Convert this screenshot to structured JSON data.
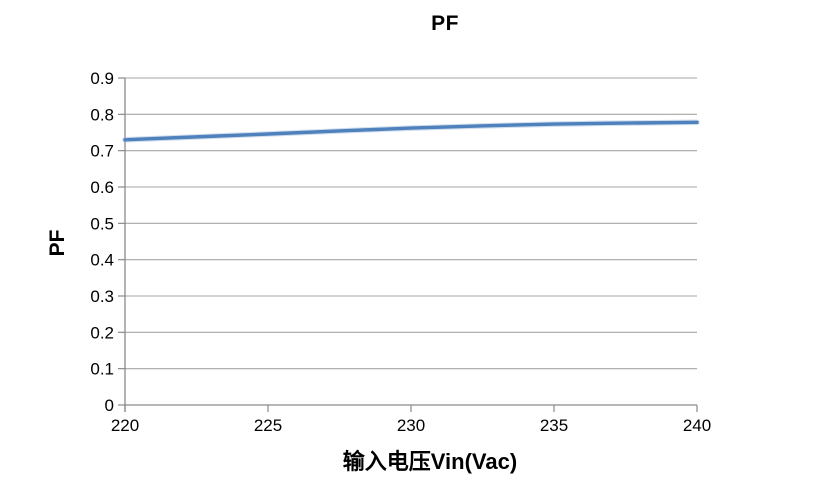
{
  "chart_data": {
    "type": "line",
    "title": "PF",
    "xlabel": "输入电压Vin(Vac)",
    "ylabel": "PF",
    "x": [
      220,
      225,
      230,
      235,
      240
    ],
    "series": [
      {
        "name": "PF",
        "values": [
          0.73,
          0.746,
          0.762,
          0.773,
          0.778
        ]
      }
    ],
    "xlim": [
      220,
      240
    ],
    "ylim": [
      0,
      0.9
    ],
    "x_tick_labels": [
      "220",
      "225",
      "230",
      "235",
      "240"
    ],
    "y_tick_labels": [
      "0",
      "0.1",
      "0.2",
      "0.3",
      "0.4",
      "0.5",
      "0.6",
      "0.7",
      "0.8",
      "0.9"
    ],
    "grid": "horizontal",
    "legend_position": "none",
    "smooth": true,
    "markers": false
  },
  "colors": {
    "line": "#4F81BD",
    "line_halo": "#95B3D7",
    "gridline": "#A6A6A6",
    "axis": "#8A8A8A",
    "text": "#000000",
    "background": "#FFFFFF"
  }
}
